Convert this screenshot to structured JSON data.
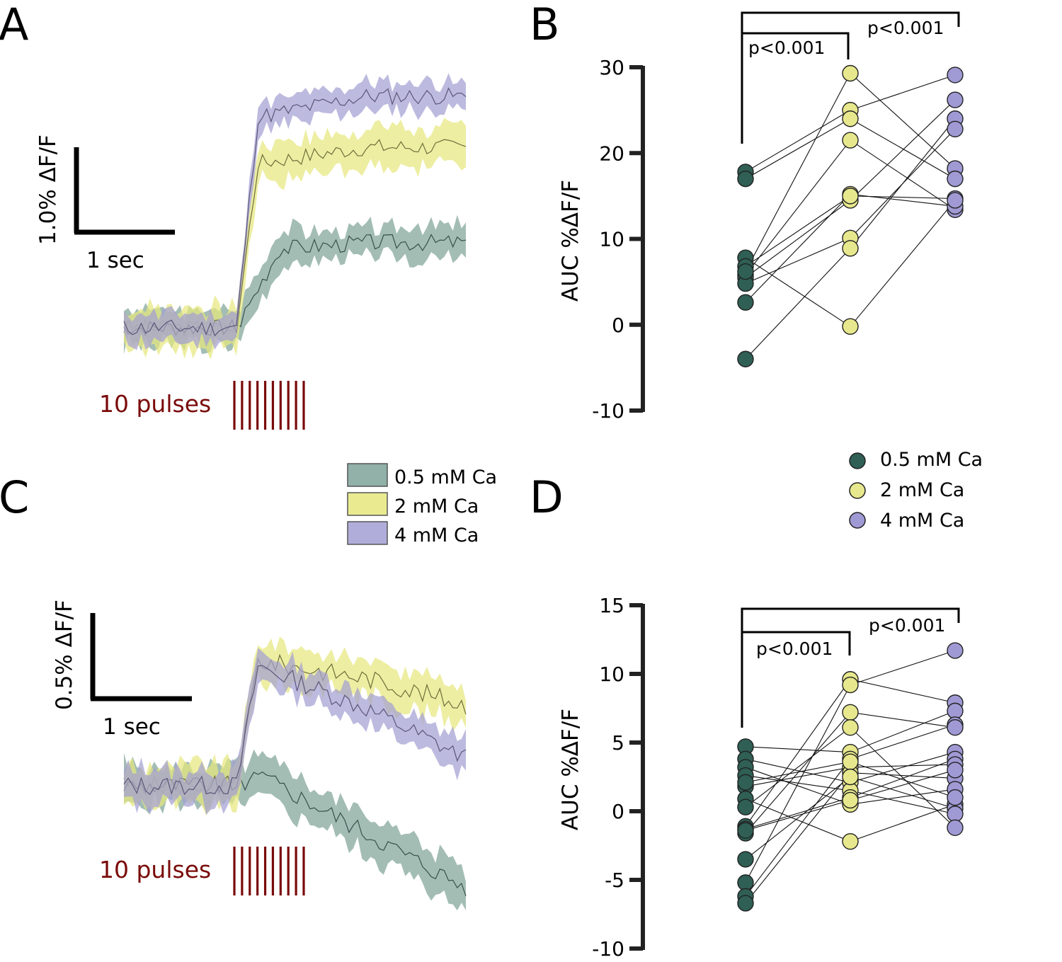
{
  "colors": {
    "ca05_fill": "#7fa399",
    "ca05_dot": "#2f5f55",
    "ca2_fill": "#e6e87e",
    "ca2_dot": "#e7e88d",
    "ca4_fill": "#a39fd3",
    "ca4_dot": "#9f9ad4",
    "pulse": "#7a0a0a",
    "axis": "#222222"
  },
  "legend": {
    "traces": [
      "0.5 mM Ca",
      "2 mM Ca",
      "4 mM Ca"
    ],
    "points": [
      "0.5 mM Ca",
      "2 mM Ca",
      "4 mM Ca"
    ]
  },
  "chart_data": [
    {
      "panel": "A",
      "type": "area",
      "description": "Mean fluorescence traces (line) with error band (shaded) in response to 10 pulses",
      "scalebar": {
        "y_label": "1.0% ΔF/F",
        "x_label": "1 sec"
      },
      "stimulus_label": "10 pulses",
      "pulse_count": 10,
      "baseline_points": 26,
      "series": [
        {
          "name": "0.5 mM Ca",
          "baseline": 0,
          "plateau": 0.45,
          "rise_pts": 10,
          "decay": 0,
          "band": 0.1,
          "noise": 0.05,
          "seed": 3
        },
        {
          "name": "2 mM Ca",
          "baseline": 0,
          "plateau": 0.95,
          "rise_pts": 5,
          "decay": 0,
          "band": 0.12,
          "noise": 0.05,
          "seed": 7
        },
        {
          "name": "4 mM Ca",
          "baseline": 0,
          "plateau": 1.22,
          "rise_pts": 5,
          "decay": 0,
          "band": 0.08,
          "noise": 0.05,
          "seed": 11
        }
      ],
      "ylim": [
        -0.3,
        1.6
      ]
    },
    {
      "panel": "B",
      "type": "scatter",
      "ylabel": "AUC %ΔF/F",
      "ylim": [
        -10,
        30
      ],
      "yticks": [
        -10,
        0,
        10,
        20,
        30
      ],
      "categories": [
        "0.5 mM Ca",
        "2 mM Ca",
        "4 mM Ca"
      ],
      "series": [
        {
          "name": "0.5 mM Ca",
          "values": [
            17.8,
            17.0,
            7.8,
            6.8,
            5.8,
            5.5,
            4.8,
            2.6,
            -4.0,
            6.2
          ]
        },
        {
          "name": "2 mM Ca",
          "values": [
            29.3,
            25.0,
            24.0,
            21.5,
            15.2,
            14.5,
            10.1,
            8.9,
            -0.2,
            15.0
          ]
        },
        {
          "name": "4 mM Ca",
          "values": [
            29.1,
            26.2,
            24.0,
            22.8,
            18.2,
            17.0,
            14.7,
            13.4,
            13.8,
            14.5
          ]
        }
      ],
      "pairs": [
        [
          0,
          1,
          0
        ],
        [
          1,
          2,
          5
        ],
        [
          3,
          9,
          6
        ],
        [
          4,
          3,
          7
        ],
        [
          5,
          5,
          1
        ],
        [
          6,
          6,
          3
        ],
        [
          7,
          4,
          8
        ],
        [
          8,
          7,
          2
        ],
        [
          2,
          8,
          9
        ],
        [
          9,
          0,
          4
        ]
      ],
      "significance": [
        {
          "from": "0.5 mM Ca",
          "to": "2 mM Ca",
          "label": "p<0.001"
        },
        {
          "from": "0.5 mM Ca",
          "to": "4 mM Ca",
          "label": "p<0.001"
        }
      ]
    },
    {
      "panel": "C",
      "type": "area",
      "description": "Mean fluorescence traces (line) with error band (shaded) in response to 10 pulses",
      "scalebar": {
        "y_label": "0.5% ΔF/F",
        "x_label": "1 sec"
      },
      "stimulus_label": "10 pulses",
      "pulse_count": 10,
      "baseline_points": 26,
      "series": [
        {
          "name": "0.5 mM Ca",
          "baseline": 0,
          "plateau": 0.05,
          "rise_pts": 6,
          "decay": -0.7,
          "band": 0.12,
          "noise": 0.06,
          "seed": 5
        },
        {
          "name": "2 mM Ca",
          "baseline": 0,
          "plateau": 0.75,
          "rise_pts": 5,
          "decay": -0.35,
          "band": 0.12,
          "noise": 0.06,
          "seed": 9
        },
        {
          "name": "4 mM Ca",
          "baseline": 0,
          "plateau": 0.72,
          "rise_pts": 5,
          "decay": -0.65,
          "band": 0.1,
          "noise": 0.06,
          "seed": 13
        }
      ],
      "ylim": [
        -1.0,
        1.0
      ]
    },
    {
      "panel": "D",
      "type": "scatter",
      "ylabel": "AUC %ΔF/F",
      "ylim": [
        -10,
        15
      ],
      "yticks": [
        -10,
        -5,
        0,
        5,
        10,
        15
      ],
      "categories": [
        "0.5 mM Ca",
        "2 mM Ca",
        "4 mM Ca"
      ],
      "series": [
        {
          "name": "0.5 mM Ca",
          "values": [
            4.7,
            3.8,
            3.2,
            2.6,
            1.8,
            0.9,
            0.3,
            -1.1,
            -1.3,
            -1.6,
            -3.5,
            -5.2,
            -6.2,
            -6.7,
            2.1,
            -1.4
          ]
        },
        {
          "name": "2 mM Ca",
          "values": [
            9.6,
            9.2,
            7.2,
            6.1,
            4.3,
            3.8,
            3.2,
            2.8,
            2.1,
            1.5,
            1.0,
            0.5,
            -2.2,
            3.6,
            2.5,
            0.8
          ]
        },
        {
          "name": "4 mM Ca",
          "values": [
            11.7,
            7.9,
            7.3,
            6.3,
            6.1,
            4.3,
            3.8,
            3.4,
            2.4,
            1.6,
            0.5,
            0.2,
            -0.2,
            -1.2,
            3.0,
            1.0
          ]
        }
      ],
      "pairs": [
        [
          0,
          4,
          2
        ],
        [
          1,
          8,
          5
        ],
        [
          2,
          11,
          9
        ],
        [
          3,
          9,
          12
        ],
        [
          4,
          6,
          7
        ],
        [
          5,
          12,
          10
        ],
        [
          6,
          3,
          13
        ],
        [
          7,
          0,
          1
        ],
        [
          8,
          10,
          6
        ],
        [
          9,
          2,
          4
        ],
        [
          10,
          14,
          11
        ],
        [
          11,
          1,
          0
        ],
        [
          12,
          5,
          3
        ],
        [
          13,
          7,
          8
        ],
        [
          14,
          13,
          15
        ],
        [
          15,
          15,
          14
        ]
      ],
      "significance": [
        {
          "from": "0.5 mM Ca",
          "to": "2 mM Ca",
          "label": "p<0.001"
        },
        {
          "from": "0.5 mM Ca",
          "to": "4 mM Ca",
          "label": "p<0.001"
        }
      ]
    }
  ],
  "panel_labels": [
    "A",
    "B",
    "C",
    "D"
  ]
}
